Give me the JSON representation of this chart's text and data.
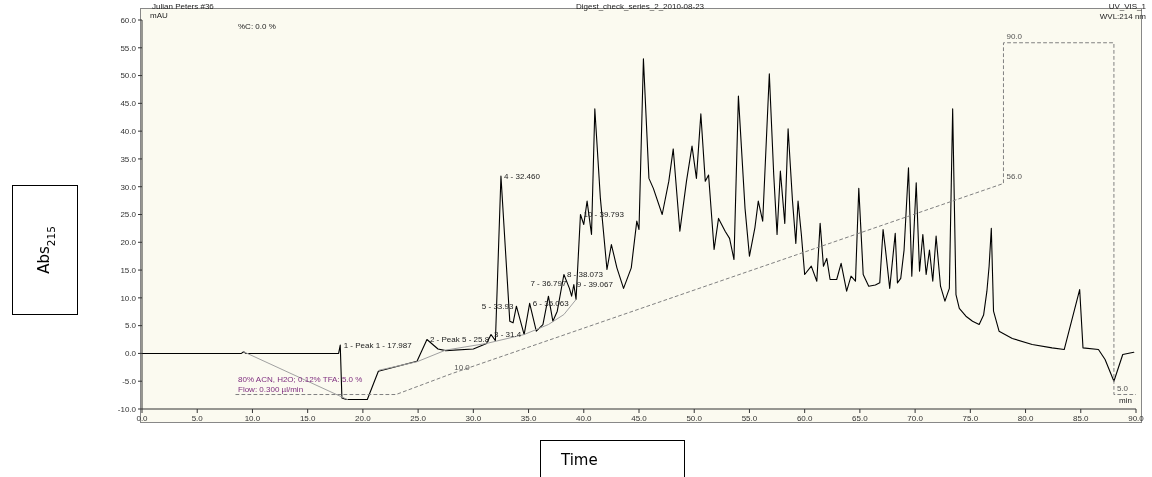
{
  "chart_data": {
    "type": "line",
    "title": "Digest_check_series_2_2010-08-23",
    "xlabel": "Time",
    "ylabel": "Abs$_{215}$",
    "annotations": [
      "Julian Peters #36",
      "mAU",
      "%C: 0.0 %",
      "UV_VIS_1",
      "WVL:214 nm",
      "80% ACN, H2O; 0.12% TFA: 5.0 %",
      "Flow: 0.300 µl/min",
      "min",
      {
        "text": "1 - Peak 1 - 17.987",
        "x": 17.987,
        "y": 1.5
      },
      {
        "text": "2 - Peak 5 - 25.8",
        "x": 25.8,
        "y": 2.5
      },
      {
        "text": "3 - 31.4",
        "x": 31.6,
        "y": 3.4
      },
      {
        "text": "4 - 32.460",
        "x": 32.5,
        "y": 31.9
      },
      {
        "text": "5 - 33.93",
        "x": 33.9,
        "y": 8.5
      },
      {
        "text": "6 - 35.063",
        "x": 35.1,
        "y": 9.0
      },
      {
        "text": "7 - 36.797",
        "x": 36.8,
        "y": 10.3
      },
      {
        "text": "8 - 38.073",
        "x": 38.2,
        "y": 14.2
      },
      {
        "text": "9 - 39.067",
        "x": 39.1,
        "y": 12.4
      },
      {
        "text": "10 - 39.793",
        "x": 39.7,
        "y": 25.0
      }
    ],
    "xlim": [
      0,
      90
    ],
    "ylim": [
      -10,
      60
    ],
    "y2lim": [
      1.5,
      95.5
    ],
    "xticks": [
      {
        "value": 0,
        "label": "0.0"
      },
      {
        "value": 5,
        "label": "5.0"
      },
      {
        "value": 10,
        "label": "10.0"
      },
      {
        "value": 15,
        "label": "15.0"
      },
      {
        "value": 20,
        "label": "20.0"
      },
      {
        "value": 25,
        "label": "25.0"
      },
      {
        "value": 30,
        "label": "30.0"
      },
      {
        "value": 35,
        "label": "35.0"
      },
      {
        "value": 40,
        "label": "40.0"
      },
      {
        "value": 45,
        "label": "45.0"
      },
      {
        "value": 50,
        "label": "50.0"
      },
      {
        "value": 55,
        "label": "55.0"
      },
      {
        "value": 60,
        "label": "60.0"
      },
      {
        "value": 65,
        "label": "65.0"
      },
      {
        "value": 70,
        "label": "70.0"
      },
      {
        "value": 75,
        "label": "75.0"
      },
      {
        "value": 80,
        "label": "80.0"
      },
      {
        "value": 85,
        "label": "85.0"
      },
      {
        "value": 90,
        "label": "90.0"
      }
    ],
    "yticks": [
      {
        "value": -10,
        "label": "-10.0"
      },
      {
        "value": -5,
        "label": "-5.0"
      },
      {
        "value": 0,
        "label": "0.0"
      },
      {
        "value": 5,
        "label": "5.0"
      },
      {
        "value": 10,
        "label": "10.0"
      },
      {
        "value": 15,
        "label": "15.0"
      },
      {
        "value": 20,
        "label": "20.0"
      },
      {
        "value": 25,
        "label": "25.0"
      },
      {
        "value": 30,
        "label": "30.0"
      },
      {
        "value": 35,
        "label": "35.0"
      },
      {
        "value": 40,
        "label": "40.0"
      },
      {
        "value": 45,
        "label": "45.0"
      },
      {
        "value": 50,
        "label": "50.0"
      },
      {
        "value": 55,
        "label": "55.0"
      },
      {
        "value": 60,
        "label": "60.0"
      }
    ],
    "marker": "none",
    "series": [
      {
        "color": "#000000",
        "line_style": "solid",
        "x": [
          0,
          9.0,
          9.2,
          9.4,
          17.8,
          17.95,
          18.1,
          18.5,
          20.4,
          21.4,
          24.9,
          25.8,
          26.8,
          27.5,
          30,
          31.2,
          31.6,
          32.0,
          32.5,
          33.3,
          33.6,
          33.9,
          34.6,
          35.1,
          35.7,
          36.3,
          36.8,
          37.2,
          37.6,
          38.2,
          38.7,
          38.9,
          39.1,
          39.3,
          39.7,
          40.0,
          40.3,
          40.7,
          41.0,
          41.5,
          42.1,
          42.5,
          43.0,
          43.6,
          44.3,
          44.8,
          45.0,
          45.4,
          45.9,
          46.3,
          47.1,
          47.7,
          48.1,
          48.7,
          49.3,
          49.8,
          50.2,
          50.6,
          51.0,
          51.3,
          51.8,
          52.2,
          52.8,
          53.2,
          53.6,
          54.0,
          54.6,
          55.0,
          55.5,
          55.8,
          56.2,
          56.8,
          57.2,
          57.5,
          57.8,
          58.2,
          58.5,
          58.9,
          59.2,
          59.4,
          59.7,
          60.0,
          60.6,
          61.1,
          61.4,
          61.7,
          62.0,
          62.3,
          62.9,
          63.3,
          63.8,
          64.2,
          64.6,
          64.9,
          65.3,
          65.8,
          66.4,
          66.8,
          67.1,
          67.3,
          67.7,
          68.2,
          68.4,
          68.7,
          69.0,
          69.4,
          69.7,
          70.1,
          70.4,
          70.7,
          71.0,
          71.3,
          71.6,
          71.9,
          72.3,
          72.7,
          73.1,
          73.4,
          73.7,
          74.0,
          74.6,
          75.2,
          75.8,
          76.2,
          76.5,
          76.7,
          76.9,
          77.1,
          77.6,
          78.8,
          80.6,
          82.4,
          83.5,
          84.9,
          85.2,
          86.6,
          87.2,
          88.0,
          88.8,
          89.8
        ],
        "values": [
          0,
          0,
          0.3,
          0,
          0,
          1.5,
          -8.0,
          -8.3,
          -8.3,
          -3.2,
          -1.4,
          2.5,
          0.8,
          0.5,
          0.8,
          1.8,
          3.4,
          2.3,
          31.9,
          5.8,
          5.5,
          8.5,
          3.4,
          9.0,
          4.0,
          5.2,
          10.3,
          5.8,
          7.6,
          14.2,
          11.7,
          10.3,
          12.4,
          9.7,
          25.0,
          23.2,
          27.4,
          21.4,
          44.0,
          28.0,
          15.1,
          19.6,
          15.4,
          11.7,
          15.4,
          23.8,
          22.3,
          53.0,
          31.5,
          29.7,
          25.0,
          31.0,
          36.8,
          22.0,
          31.0,
          37.3,
          31.5,
          43.1,
          31.0,
          32.1,
          18.7,
          24.3,
          22.0,
          20.7,
          16.9,
          46.3,
          26.1,
          17.5,
          22.7,
          27.4,
          23.8,
          50.3,
          32.1,
          21.4,
          32.8,
          23.4,
          40.4,
          27.4,
          19.8,
          27.4,
          21.4,
          14.2,
          15.7,
          13.0,
          23.4,
          15.7,
          17.1,
          13.3,
          13.3,
          16.2,
          11.2,
          13.9,
          13.0,
          29.7,
          14.2,
          12.1,
          12.3,
          12.7,
          22.3,
          19.0,
          11.7,
          21.6,
          12.7,
          13.5,
          18.6,
          33.4,
          13.9,
          30.7,
          14.8,
          21.4,
          14.2,
          18.6,
          13.0,
          21.1,
          12.1,
          9.4,
          11.7,
          44.0,
          10.6,
          8.1,
          6.7,
          5.8,
          5.2,
          6.9,
          11.2,
          15.7,
          22.5,
          7.6,
          4.0,
          2.7,
          1.6,
          1.0,
          0.7,
          11.5,
          1.0,
          0.7,
          -1.1,
          -5.0,
          -0.2,
          0.2
        ]
      },
      {
        "color": "#a0a0a0",
        "line_style": "solid",
        "x": [
          9.2,
          18.6
        ],
        "values": [
          0.3,
          -8.3
        ]
      },
      {
        "color": "#a0a0a0",
        "line_style": "solid",
        "x": [
          21.5,
          24.9,
          27.5,
          31.2,
          34.6,
          36.8,
          38.2,
          39.3
        ],
        "values": [
          -3.0,
          -1.5,
          0.6,
          1.8,
          3.4,
          5.2,
          7.0,
          9.7
        ]
      },
      {
        "color": "#808080",
        "line_style": "dashed",
        "axis": "y2",
        "x": [
          8.5,
          23.0,
          28.0,
          78.0,
          78.0,
          88.0,
          88.0,
          90.0
        ],
        "values": [
          5,
          5,
          10,
          56,
          90,
          90,
          5,
          5
        ],
        "value_labels": [
          null,
          null,
          "10.0",
          "56.0",
          "90.0",
          null,
          "5.0",
          null
        ]
      }
    ]
  }
}
